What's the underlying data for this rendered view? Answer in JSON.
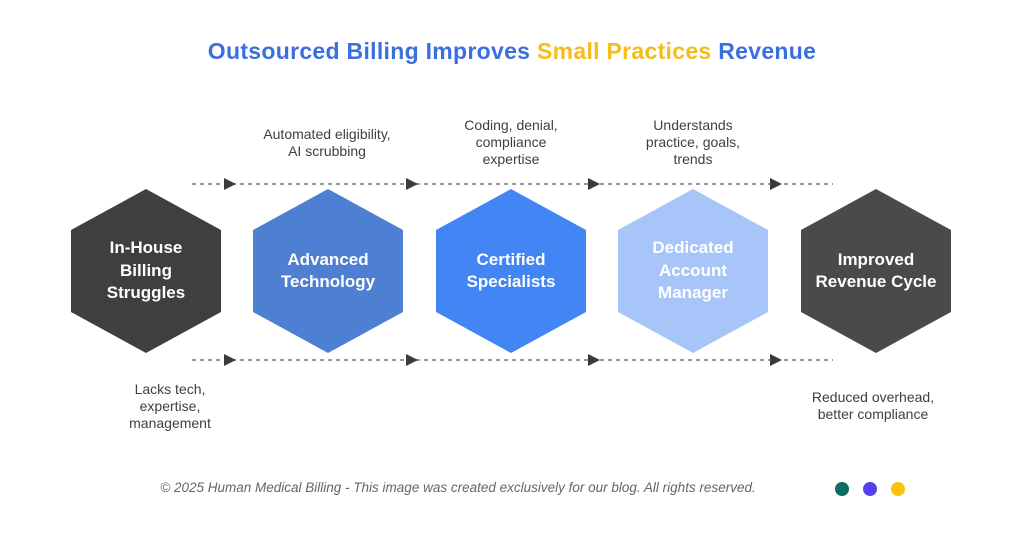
{
  "title": {
    "part1": "Outsourced Billing Improves ",
    "highlight": "Small Practices",
    "part2": " Revenue",
    "primary_color": "#3b6fe0",
    "highlight_color": "#f5bd1a"
  },
  "hexagons": [
    {
      "label": "In-House\nBilling\nStruggles",
      "color": "#3f3f3f",
      "note": "Lacks tech,\nexpertise,\nmanagement",
      "note_position": "below"
    },
    {
      "label": "Advanced\nTechnology",
      "color": "#4d7fd3",
      "note": "Automated eligibility,\nAI scrubbing",
      "note_position": "above"
    },
    {
      "label": "Certified\nSpecialists",
      "color": "#4285f4",
      "note": "Coding, denial,\ncompliance\nexpertise",
      "note_position": "above"
    },
    {
      "label": "Dedicated\nAccount\nManager",
      "color": "#a7c5f8",
      "note": "Understands\npractice, goals,\ntrends",
      "note_position": "above"
    },
    {
      "label": "Improved\nRevenue Cycle",
      "color": "#4a4a4a",
      "note": "Reduced overhead,\nbetter compliance",
      "note_position": "below"
    }
  ],
  "flow": {
    "style": "dashed",
    "direction": "left-to-right",
    "line_color": "#9a9a9a",
    "arrowhead_color": "#3b3b3b"
  },
  "footer": {
    "copyright": "© 2025 Human Medical Billing - This image was created exclusively for our blog. All rights reserved.",
    "dots": [
      {
        "name": "teal-dot",
        "color": "#0c6e63"
      },
      {
        "name": "indigo-dot",
        "color": "#5540f0"
      },
      {
        "name": "amber-dot",
        "color": "#fbc30f"
      }
    ]
  }
}
